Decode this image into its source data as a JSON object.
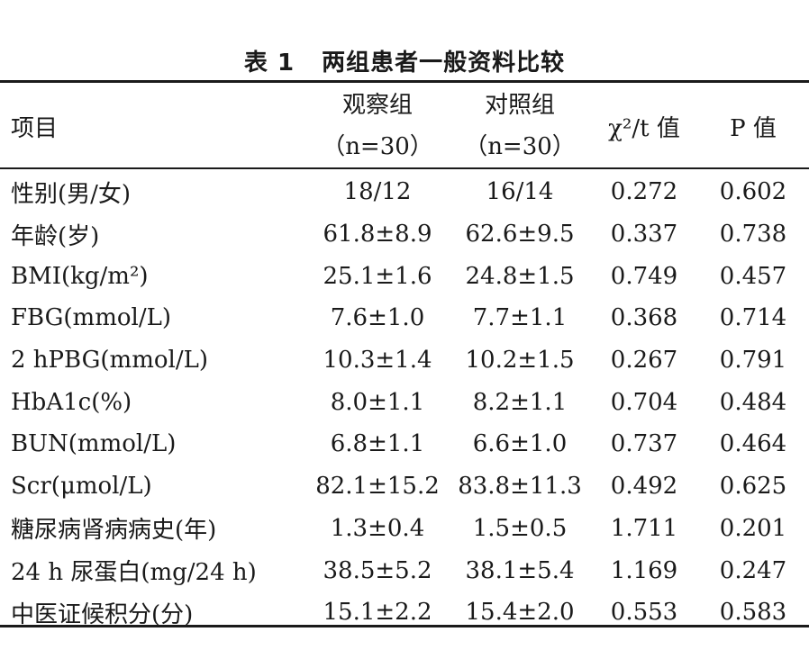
{
  "caption": {
    "number": "表 1",
    "title": "两组患者一般资料比较"
  },
  "header": {
    "item": "项目",
    "group1_name": "观察组",
    "group1_n": "（n=30）",
    "group2_name": "对照组",
    "group2_n": "（n=30）",
    "stat": "χ²/t 值",
    "p": "P 值"
  },
  "rows": [
    {
      "item": "性别(男/女)",
      "obs": "18/12",
      "ctrl": "16/14",
      "stat": "0.272",
      "p": "0.602"
    },
    {
      "item": "年龄(岁)",
      "obs": "61.8±8.9",
      "ctrl": "62.6±9.5",
      "stat": "0.337",
      "p": "0.738"
    },
    {
      "item": "BMI(kg/m²)",
      "obs": "25.1±1.6",
      "ctrl": "24.8±1.5",
      "stat": "0.749",
      "p": "0.457"
    },
    {
      "item": "FBG(mmol/L)",
      "obs": "7.6±1.0",
      "ctrl": "7.7±1.1",
      "stat": "0.368",
      "p": "0.714"
    },
    {
      "item": "2 hPBG(mmol/L)",
      "obs": "10.3±1.4",
      "ctrl": "10.2±1.5",
      "stat": "0.267",
      "p": "0.791"
    },
    {
      "item": "HbA1c(%)",
      "obs": "8.0±1.1",
      "ctrl": "8.2±1.1",
      "stat": "0.704",
      "p": "0.484"
    },
    {
      "item": "BUN(mmol/L)",
      "obs": "6.8±1.1",
      "ctrl": "6.6±1.0",
      "stat": "0.737",
      "p": "0.464"
    },
    {
      "item": "Scr(μmol/L)",
      "obs": "82.1±15.2",
      "ctrl": "83.8±11.3",
      "stat": "0.492",
      "p": "0.625"
    },
    {
      "item": "糖尿病肾病病史(年)",
      "obs": "1.3±0.4",
      "ctrl": "1.5±0.5",
      "stat": "1.711",
      "p": "0.201"
    },
    {
      "item": "24 h 尿蛋白(mg/24 h)",
      "obs": "38.5±5.2",
      "ctrl": "38.1±5.4",
      "stat": "1.169",
      "p": "0.247"
    },
    {
      "item": "中医证候积分(分)",
      "obs": "15.1±2.2",
      "ctrl": "15.4±2.0",
      "stat": "0.553",
      "p": "0.583"
    }
  ]
}
